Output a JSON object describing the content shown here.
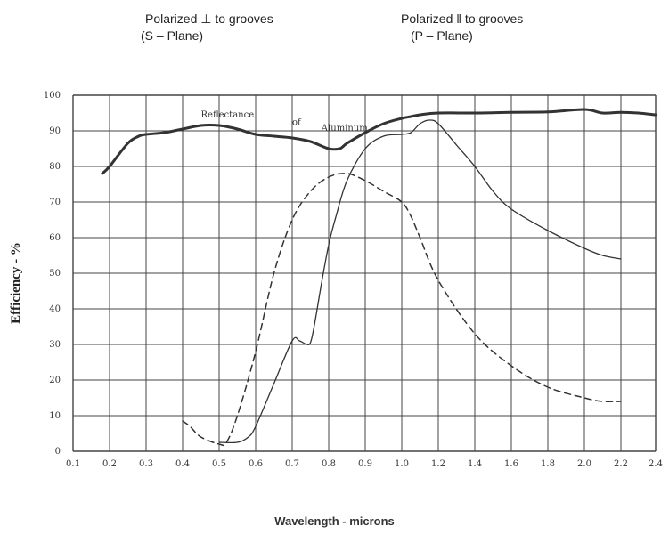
{
  "legend": {
    "s": {
      "label": "Polarized ⊥  to grooves",
      "plane": "(S – Plane)"
    },
    "p": {
      "label": "Polarized ‖ to grooves",
      "plane": "(P – Plane)"
    }
  },
  "chart_data": {
    "type": "line",
    "title": "",
    "xlabel": "Wavelength - microns",
    "ylabel": "Efficiency - %",
    "x_ticks": [
      "0.1",
      "0.2",
      "0.3",
      "0.4",
      "0.5",
      "0.6",
      "0.7",
      "0.8",
      "0.9",
      "1.0",
      "1.2",
      "1.4",
      "1.6",
      "1.8",
      "2.0",
      "2.2",
      "2.4"
    ],
    "y_ticks": [
      "0",
      "10",
      "20",
      "30",
      "40",
      "50",
      "60",
      "70",
      "80",
      "90",
      "100"
    ],
    "ylim": [
      0,
      100
    ],
    "grid": true,
    "annotation": "Reflectance of Aluminum",
    "series": [
      {
        "name": "Reflectance of Aluminum",
        "style": "thick-solid",
        "x": [
          0.18,
          0.2,
          0.25,
          0.28,
          0.3,
          0.35,
          0.4,
          0.45,
          0.5,
          0.55,
          0.6,
          0.65,
          0.7,
          0.75,
          0.8,
          0.83,
          0.85,
          0.9,
          0.95,
          1.0,
          1.05,
          1.1,
          1.2,
          1.4,
          1.6,
          1.8,
          2.0,
          2.1,
          2.2,
          2.3,
          2.4
        ],
        "y": [
          78,
          80,
          86.5,
          88.5,
          89,
          89.5,
          90.5,
          91.5,
          91.5,
          90.5,
          89,
          88.5,
          88,
          87,
          85,
          85,
          86.5,
          89.5,
          92,
          93.5,
          94,
          94.5,
          95,
          95,
          95.2,
          95.3,
          96,
          95,
          95.2,
          95,
          94.5
        ]
      },
      {
        "name": "Polarized ⊥  to grooves (S – Plane)",
        "style": "thin-solid",
        "x": [
          0.5,
          0.55,
          0.58,
          0.6,
          0.65,
          0.7,
          0.72,
          0.74,
          0.75,
          0.76,
          0.78,
          0.8,
          0.82,
          0.85,
          0.9,
          0.95,
          1.0,
          1.05,
          1.1,
          1.15,
          1.2,
          1.3,
          1.4,
          1.5,
          1.6,
          1.8,
          2.0,
          2.1,
          2.2
        ],
        "y": [
          2.5,
          2.5,
          4,
          7,
          19,
          31,
          31,
          30,
          30.5,
          35,
          47,
          58,
          66,
          76,
          85,
          88.5,
          89,
          89.5,
          92,
          93,
          92,
          86,
          80,
          73,
          68,
          62,
          57,
          55,
          54
        ]
      },
      {
        "name": "Polarized ‖ to grooves (P – Plane)",
        "style": "dashed",
        "x": [
          0.4,
          0.42,
          0.45,
          0.5,
          0.52,
          0.55,
          0.6,
          0.65,
          0.7,
          0.75,
          0.8,
          0.85,
          0.9,
          0.95,
          1.0,
          1.05,
          1.1,
          1.2,
          1.4,
          1.6,
          1.8,
          2.0,
          2.1,
          2.2
        ],
        "y": [
          8.5,
          7,
          4,
          2,
          2.5,
          10,
          28,
          50,
          65,
          73,
          77,
          78,
          76,
          73,
          70,
          66,
          60,
          48,
          33,
          24,
          18,
          15,
          14,
          14
        ]
      }
    ]
  }
}
